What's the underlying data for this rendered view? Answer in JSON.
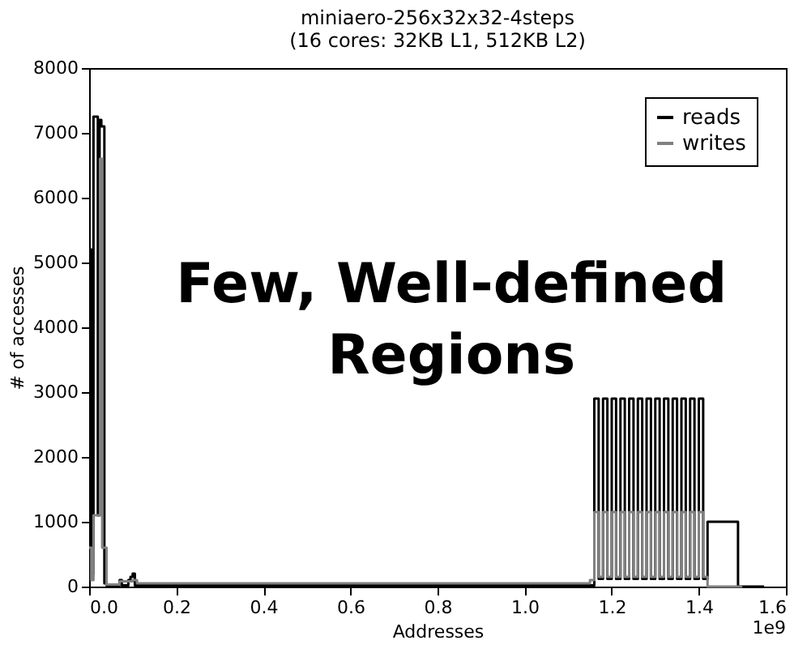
{
  "chart_data": {
    "type": "step",
    "title": "miniaero-256x32x32-4steps\n(16 cores: 32KB L1, 512KB L2)",
    "xlabel": "Addresses",
    "ylabel": "# of accesses",
    "annotations": [
      "Few, Well-defined\nRegions",
      "1e9"
    ],
    "series": [
      {
        "name": "reads",
        "color": "#000000",
        "x": [
          0,
          0.003,
          0.006,
          0.01,
          0.02,
          0.024,
          0.028,
          0.035,
          0.04,
          0.07,
          0.075,
          0.09,
          0.095,
          0.1,
          0.105,
          0.15,
          1.15,
          1.16,
          1.17,
          1.18,
          1.19,
          1.2,
          1.21,
          1.22,
          1.23,
          1.24,
          1.25,
          1.26,
          1.27,
          1.28,
          1.29,
          1.3,
          1.31,
          1.32,
          1.33,
          1.34,
          1.35,
          1.36,
          1.37,
          1.38,
          1.39,
          1.4,
          1.41,
          1.42,
          1.49,
          1.55
        ],
        "values": [
          300,
          5200,
          200,
          7250,
          1100,
          7200,
          7100,
          50,
          20,
          100,
          20,
          100,
          150,
          200,
          20,
          20,
          20,
          2900,
          120,
          2900,
          120,
          2900,
          120,
          2900,
          120,
          2900,
          120,
          2900,
          120,
          2900,
          120,
          2900,
          120,
          2900,
          120,
          2900,
          120,
          2900,
          120,
          2900,
          120,
          2900,
          120,
          1000,
          0,
          0
        ]
      },
      {
        "name": "writes",
        "color": "#808080",
        "x": [
          0,
          0.005,
          0.01,
          0.02,
          0.025,
          0.03,
          0.04,
          0.07,
          0.1,
          0.11,
          1.14,
          1.15,
          1.16,
          1.17,
          1.18,
          1.19,
          1.2,
          1.21,
          1.22,
          1.23,
          1.24,
          1.25,
          1.26,
          1.27,
          1.28,
          1.29,
          1.3,
          1.31,
          1.32,
          1.33,
          1.34,
          1.35,
          1.36,
          1.37,
          1.38,
          1.39,
          1.4,
          1.41,
          1.42,
          1.5
        ],
        "values": [
          600,
          100,
          1100,
          1100,
          6600,
          600,
          30,
          80,
          100,
          50,
          50,
          100,
          1150,
          150,
          1150,
          150,
          1150,
          150,
          1150,
          150,
          1150,
          150,
          1150,
          150,
          1150,
          150,
          1150,
          150,
          1150,
          150,
          1150,
          150,
          1150,
          150,
          1150,
          150,
          1150,
          150,
          0,
          0
        ]
      }
    ],
    "xlim": [
      0,
      1.6
    ],
    "xticks": [
      {
        "value": 0,
        "label": "0.0"
      },
      {
        "value": 0.2,
        "label": "0.2"
      },
      {
        "value": 0.4,
        "label": "0.4"
      },
      {
        "value": 0.6,
        "label": "0.6"
      },
      {
        "value": 0.8,
        "label": "0.8"
      },
      {
        "value": 1.0,
        "label": "1.0"
      },
      {
        "value": 1.2,
        "label": "1.2"
      },
      {
        "value": 1.4,
        "label": "1.4"
      },
      {
        "value": 1.6,
        "label": "1.6"
      }
    ],
    "ylim": [
      0,
      8000
    ],
    "yticks": [
      0,
      1000,
      2000,
      3000,
      4000,
      5000,
      6000,
      7000,
      8000
    ],
    "legend": "top right",
    "grid": false,
    "line_style": "solid",
    "marker": "none"
  }
}
